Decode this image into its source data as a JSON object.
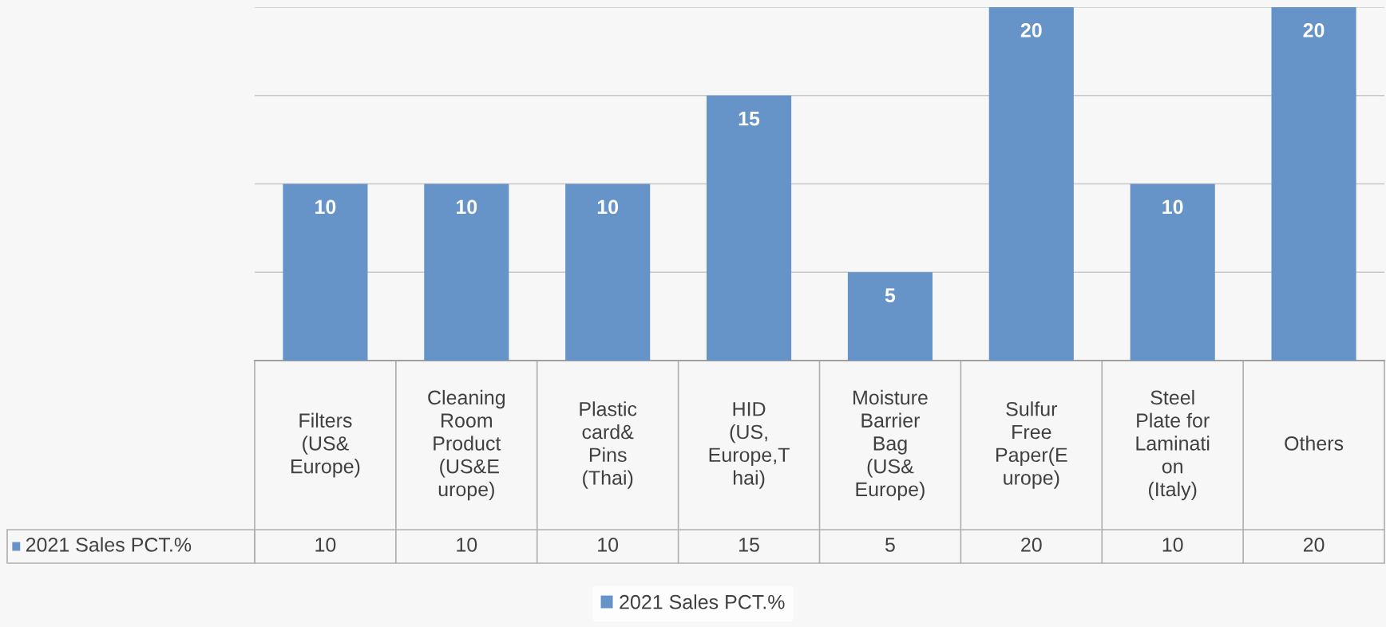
{
  "chart_data": {
    "type": "bar",
    "categories": [
      "Filters\n(US&\nEurope)",
      "Cleaning\nRoom\nProduct\n (US&E\nurope)",
      "Plastic\ncard&\nPins\n(Thai)",
      "HID\n(US,\nEurope,T\nhai)",
      "Moisture\nBarrier\nBag\n(US&\nEurope)",
      "Sulfur\nFree\nPaper(E\nurope)",
      "Steel\nPlate for\nLaminati\non\n(Italy)",
      "Others"
    ],
    "series": [
      {
        "name": "2021 Sales PCT.%",
        "color": "#6694c8",
        "values": [
          10,
          10,
          10,
          15,
          5,
          20,
          10,
          20
        ],
        "value_labels": [
          "10",
          "10",
          "10",
          "15",
          "5",
          "20",
          "10",
          "20"
        ]
      }
    ],
    "ylim": [
      0,
      20
    ],
    "yticks": [
      {
        "value": 0,
        "label": null
      },
      {
        "value": 5,
        "label": null
      },
      {
        "value": 10,
        "label": null
      },
      {
        "value": 15,
        "label": null
      },
      {
        "value": 20,
        "label": null
      }
    ],
    "annotations": [
      "10",
      "10",
      "10",
      "15",
      "5",
      "20",
      "10",
      "20"
    ],
    "grid": "y",
    "legend": "bottom",
    "tick_labels": "x"
  }
}
